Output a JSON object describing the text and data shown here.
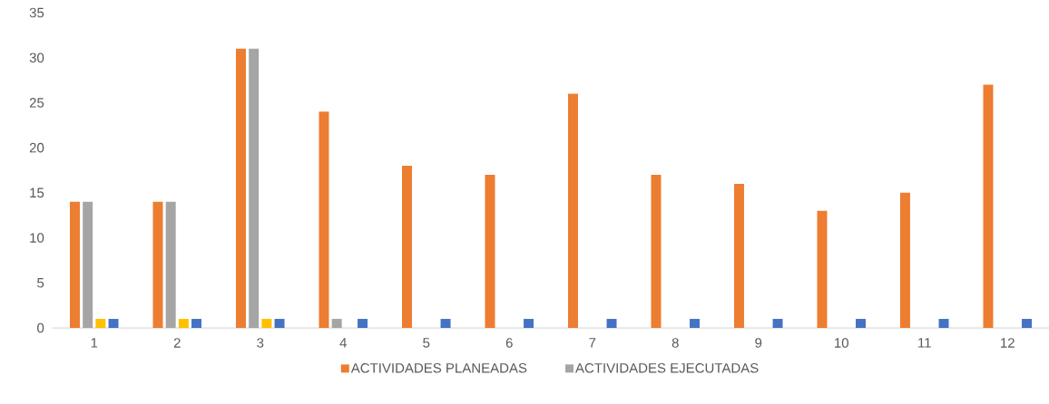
{
  "chart_data": {
    "type": "bar",
    "categories": [
      "1",
      "2",
      "3",
      "4",
      "5",
      "6",
      "7",
      "8",
      "9",
      "10",
      "11",
      "12"
    ],
    "series": [
      {
        "name": "ACTIVIDADES PLANEADAS",
        "color": "#ed7d31",
        "values": [
          14,
          14,
          31,
          24,
          18,
          17,
          26,
          17,
          16,
          13,
          15,
          27
        ]
      },
      {
        "name": "ACTIVIDADES EJECUTADAS",
        "color": "#a5a5a5",
        "values": [
          14,
          14,
          31,
          1,
          null,
          null,
          null,
          null,
          null,
          null,
          null,
          null
        ]
      },
      {
        "color": "#ffc000",
        "values": [
          1,
          1,
          1,
          null,
          null,
          null,
          null,
          null,
          null,
          null,
          null,
          null
        ]
      },
      {
        "color": "#4472c4",
        "values": [
          1,
          1,
          1,
          1,
          1,
          1,
          1,
          1,
          1,
          1,
          1,
          1
        ]
      }
    ],
    "ylim": [
      0,
      35
    ],
    "yticks": [
      0,
      5,
      10,
      15,
      20,
      25,
      30,
      35
    ],
    "grid": false,
    "legend": "bottom"
  }
}
